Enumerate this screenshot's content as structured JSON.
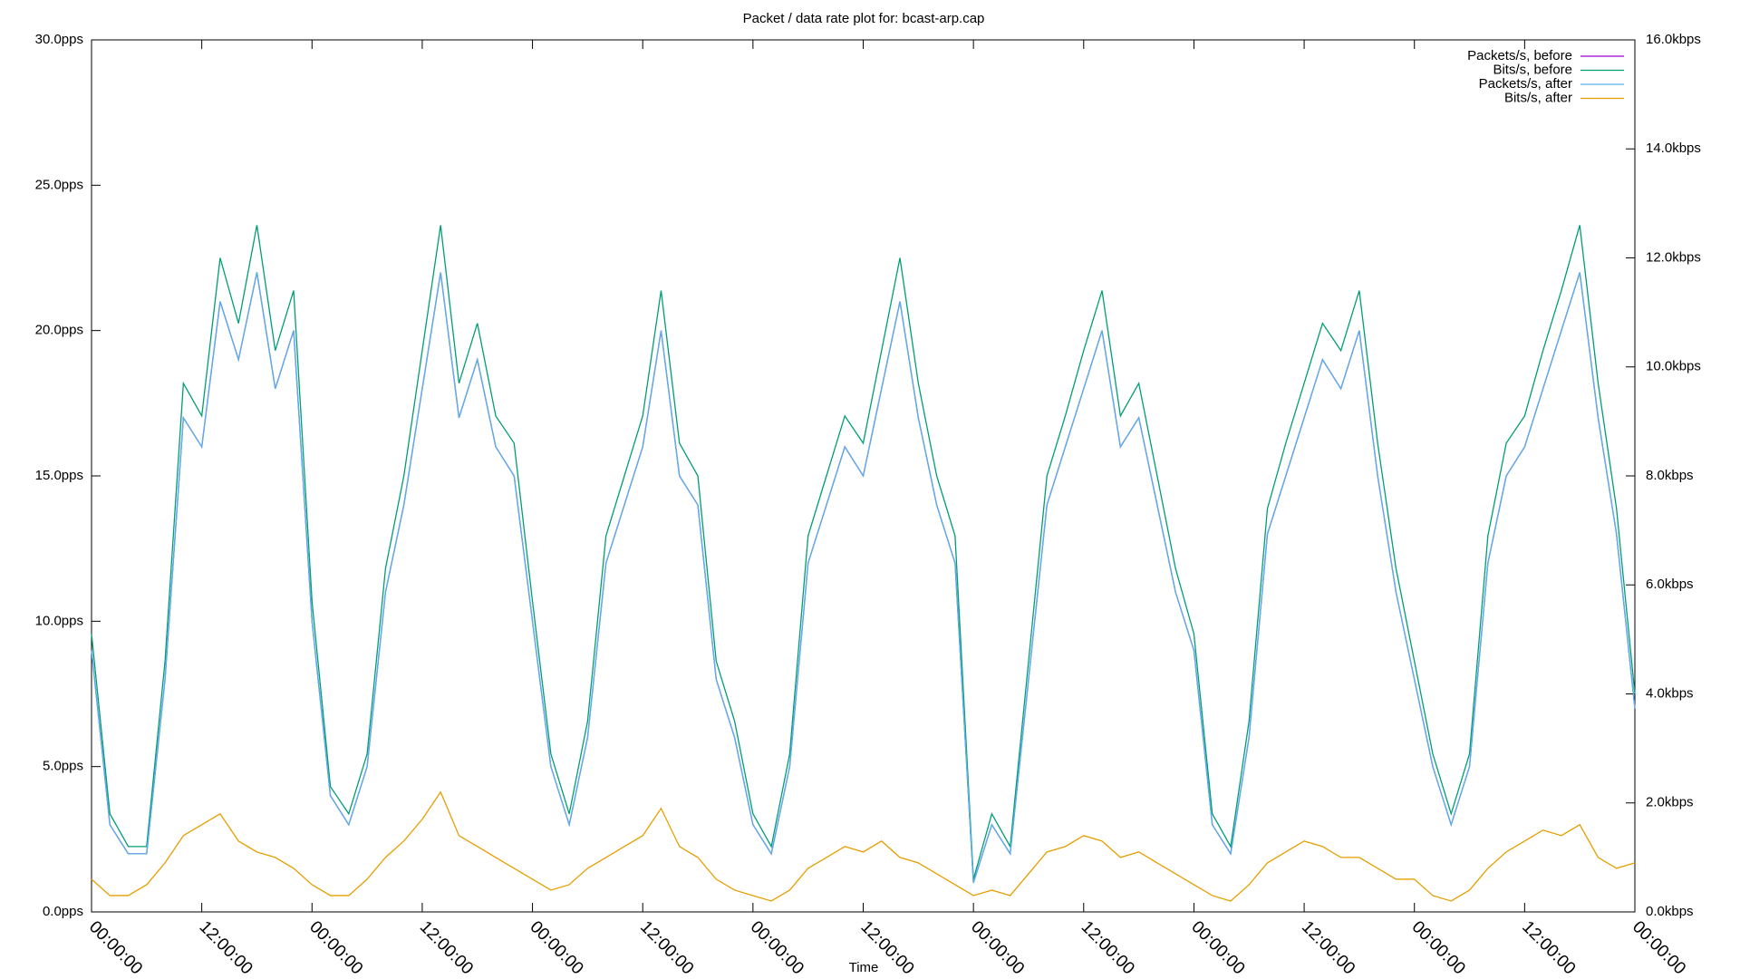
{
  "chart_data": {
    "type": "line",
    "title": "Packet / data rate plot for: bcast-arp.cap",
    "x_label": "Time",
    "x": [
      0,
      2,
      4,
      6,
      8,
      10,
      12,
      14,
      16,
      18,
      20,
      22,
      24,
      26,
      28,
      30,
      32,
      34,
      36,
      38,
      40,
      42,
      44,
      46,
      48,
      50,
      52,
      54,
      56,
      58,
      60,
      62,
      64,
      66,
      68,
      70,
      72,
      74,
      76,
      78,
      80,
      82,
      84,
      86,
      88,
      90,
      92,
      94,
      96,
      98,
      100,
      102,
      104,
      106,
      108,
      110,
      112,
      114,
      116,
      118,
      120,
      122,
      124,
      126,
      128,
      130,
      132,
      134,
      136,
      138,
      140,
      142,
      144,
      146,
      148,
      150,
      152,
      154,
      156,
      158,
      160,
      162,
      164,
      166,
      168
    ],
    "xlim": [
      0,
      168
    ],
    "xticks": [
      {
        "value": 0,
        "label": "00:00:00"
      },
      {
        "value": 12,
        "label": "12:00:00"
      },
      {
        "value": 24,
        "label": "00:00:00"
      },
      {
        "value": 36,
        "label": "12:00:00"
      },
      {
        "value": 48,
        "label": "00:00:00"
      },
      {
        "value": 60,
        "label": "12:00:00"
      },
      {
        "value": 72,
        "label": "00:00:00"
      },
      {
        "value": 84,
        "label": "12:00:00"
      },
      {
        "value": 96,
        "label": "00:00:00"
      },
      {
        "value": 108,
        "label": "12:00:00"
      },
      {
        "value": 120,
        "label": "00:00:00"
      },
      {
        "value": 132,
        "label": "12:00:00"
      },
      {
        "value": 144,
        "label": "00:00:00"
      },
      {
        "value": 156,
        "label": "12:00:00"
      },
      {
        "value": 168,
        "label": "00:00:00"
      }
    ],
    "ylim": [
      0,
      30
    ],
    "yticks": [
      {
        "value": 0,
        "label": "0.0pps"
      },
      {
        "value": 5,
        "label": "5.0pps"
      },
      {
        "value": 10,
        "label": "10.0pps"
      },
      {
        "value": 15,
        "label": "15.0pps"
      },
      {
        "value": 20,
        "label": "20.0pps"
      },
      {
        "value": 25,
        "label": "25.0pps"
      },
      {
        "value": 30,
        "label": "30.0pps"
      }
    ],
    "y2lim": [
      0,
      16
    ],
    "y2ticks": [
      {
        "value": 0,
        "label": "0.0kbps"
      },
      {
        "value": 2,
        "label": "2.0kbps"
      },
      {
        "value": 4,
        "label": "4.0kbps"
      },
      {
        "value": 6,
        "label": "6.0kbps"
      },
      {
        "value": 8,
        "label": "8.0kbps"
      },
      {
        "value": 10,
        "label": "10.0kbps"
      },
      {
        "value": 12,
        "label": "12.0kbps"
      },
      {
        "value": 14,
        "label": "14.0kbps"
      },
      {
        "value": 16,
        "label": "16.0kbps"
      }
    ],
    "legend": "upper right",
    "series": [
      {
        "name": "Packets/s, before",
        "color": "#9400d3",
        "values": [
          9,
          3,
          2,
          2,
          8,
          17,
          16,
          21,
          19,
          22,
          18,
          20,
          10,
          4,
          3,
          5,
          11,
          14,
          18,
          22,
          17,
          19,
          16,
          15,
          10,
          5,
          3,
          6,
          12,
          14,
          16,
          20,
          15,
          14,
          8,
          6,
          3,
          2,
          5,
          12,
          14,
          16,
          15,
          18,
          21,
          17,
          14,
          12,
          1,
          3,
          2,
          8,
          14,
          16,
          18,
          20,
          16,
          17,
          14,
          11,
          9,
          3,
          2,
          6,
          13,
          15,
          17,
          19,
          18,
          20,
          15,
          11,
          8,
          5,
          3,
          5,
          12,
          15,
          16,
          18,
          20,
          22,
          17,
          13,
          7
        ]
      },
      {
        "name": "Bits/s, before",
        "color": "#009e73",
        "axis": "y2",
        "values": [
          5.1,
          1.8,
          1.2,
          1.2,
          4.6,
          9.7,
          9.1,
          12.0,
          10.8,
          12.6,
          10.3,
          11.4,
          5.7,
          2.3,
          1.8,
          2.9,
          6.3,
          8.0,
          10.3,
          12.6,
          9.7,
          10.8,
          9.1,
          8.6,
          5.7,
          2.9,
          1.8,
          3.5,
          6.9,
          8.0,
          9.1,
          11.4,
          8.6,
          8.0,
          4.6,
          3.5,
          1.8,
          1.2,
          2.9,
          6.9,
          8.0,
          9.1,
          8.6,
          10.3,
          12.0,
          9.7,
          8.0,
          6.9,
          0.6,
          1.8,
          1.2,
          4.6,
          8.0,
          9.1,
          10.3,
          11.4,
          9.1,
          9.7,
          8.0,
          6.3,
          5.1,
          1.8,
          1.2,
          3.5,
          7.4,
          8.6,
          9.7,
          10.8,
          10.3,
          11.4,
          8.6,
          6.3,
          4.6,
          2.9,
          1.8,
          2.9,
          6.9,
          8.6,
          9.1,
          10.3,
          11.4,
          12.6,
          9.7,
          7.4,
          4.0
        ]
      },
      {
        "name": "Packets/s, after",
        "color": "#56b4e9",
        "values": [
          9,
          3,
          2,
          2,
          8,
          17,
          16,
          21,
          19,
          22,
          18,
          20,
          10,
          4,
          3,
          5,
          11,
          14,
          18,
          22,
          17,
          19,
          16,
          15,
          10,
          5,
          3,
          6,
          12,
          14,
          16,
          20,
          15,
          14,
          8,
          6,
          3,
          2,
          5,
          12,
          14,
          16,
          15,
          18,
          21,
          17,
          14,
          12,
          1,
          3,
          2,
          8,
          14,
          16,
          18,
          20,
          16,
          17,
          14,
          11,
          9,
          3,
          2,
          6,
          13,
          15,
          17,
          19,
          18,
          20,
          15,
          11,
          8,
          5,
          3,
          5,
          12,
          15,
          16,
          18,
          20,
          22,
          17,
          13,
          7
        ]
      },
      {
        "name": "Bits/s, after",
        "color": "#e69f00",
        "axis": "y2",
        "values": [
          0.6,
          0.3,
          0.3,
          0.5,
          0.9,
          1.4,
          1.6,
          1.8,
          1.3,
          1.1,
          1.0,
          0.8,
          0.5,
          0.3,
          0.3,
          0.6,
          1.0,
          1.3,
          1.7,
          2.2,
          1.4,
          1.2,
          1.0,
          0.8,
          0.6,
          0.4,
          0.5,
          0.8,
          1.0,
          1.2,
          1.4,
          1.9,
          1.2,
          1.0,
          0.6,
          0.4,
          0.3,
          0.2,
          0.4,
          0.8,
          1.0,
          1.2,
          1.1,
          1.3,
          1.0,
          0.9,
          0.7,
          0.5,
          0.3,
          0.4,
          0.3,
          0.7,
          1.1,
          1.2,
          1.4,
          1.3,
          1.0,
          1.1,
          0.9,
          0.7,
          0.5,
          0.3,
          0.2,
          0.5,
          0.9,
          1.1,
          1.3,
          1.2,
          1.0,
          1.0,
          0.8,
          0.6,
          0.6,
          0.3,
          0.2,
          0.4,
          0.8,
          1.1,
          1.3,
          1.5,
          1.4,
          1.6,
          1.0,
          0.8,
          0.9
        ]
      }
    ]
  }
}
